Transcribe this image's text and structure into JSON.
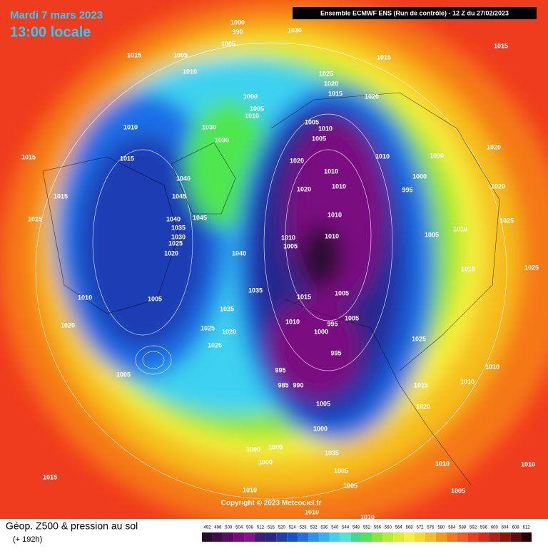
{
  "header": {
    "date": "Mardi 7 mars 2023",
    "time": "13:00 locale",
    "run": "Ensemble ECMWF ENS  (Run de contrôle)  -  12 Z du 27/02/2023"
  },
  "copyright": "Copyright © 2023 Meteociel.fr",
  "footer": {
    "title": "Géop. Z500 & pression au sol",
    "lead": "(+ 192h)"
  },
  "colorbar": {
    "ticks": [
      492,
      496,
      500,
      504,
      508,
      512,
      516,
      520,
      524,
      528,
      532,
      536,
      540,
      544,
      548,
      552,
      556,
      560,
      564,
      568,
      572,
      576,
      580,
      584,
      588,
      592,
      596,
      600,
      604,
      608,
      612
    ],
    "colors": [
      "#2b0a30",
      "#400a4a",
      "#5a0a64",
      "#7a0a80",
      "#8c1090",
      "#3c1e78",
      "#28288c",
      "#1e3cb4",
      "#1450d2",
      "#1e6ee6",
      "#2896f0",
      "#32b4f0",
      "#3cd2f0",
      "#50e6d2",
      "#3cdc8c",
      "#50e650",
      "#8ce632",
      "#b4f028",
      "#dcf028",
      "#f5f03c",
      "#f5dc28",
      "#f5be1e",
      "#f59a14",
      "#f57814",
      "#f55a1e",
      "#f03c1e",
      "#dc2814",
      "#b41e14",
      "#8c140a",
      "#640a0a",
      "#280000"
    ]
  },
  "isobar_labels": [
    1000,
    990,
    1030,
    1005,
    1015,
    1005,
    1010,
    1015,
    1015,
    1025,
    1020,
    1015,
    1020,
    1000,
    1005,
    1010,
    1010,
    1030,
    1030,
    1005,
    1010,
    1005,
    1020,
    1015,
    1015,
    1010,
    1000,
    1020,
    1040,
    1010,
    995,
    1000,
    1020,
    1020,
    1010,
    1015,
    1045,
    1010,
    1015,
    1040,
    1045,
    1010,
    1010,
    1005,
    1005,
    1025,
    1010,
    1035,
    1030,
    1025,
    1040,
    1020,
    1015,
    1025,
    1035,
    1005,
    1015,
    1010,
    1005,
    1035,
    1010,
    995,
    1005,
    1000,
    1020,
    1025,
    1020,
    1025,
    1025,
    995,
    1010,
    1005,
    995,
    985,
    990,
    1010,
    1015,
    1020,
    1005,
    1000,
    1035,
    1000,
    1000,
    1000,
    1005,
    1010,
    1015,
    1005,
    1010,
    1005,
    1010,
    1010,
    1010
  ]
}
